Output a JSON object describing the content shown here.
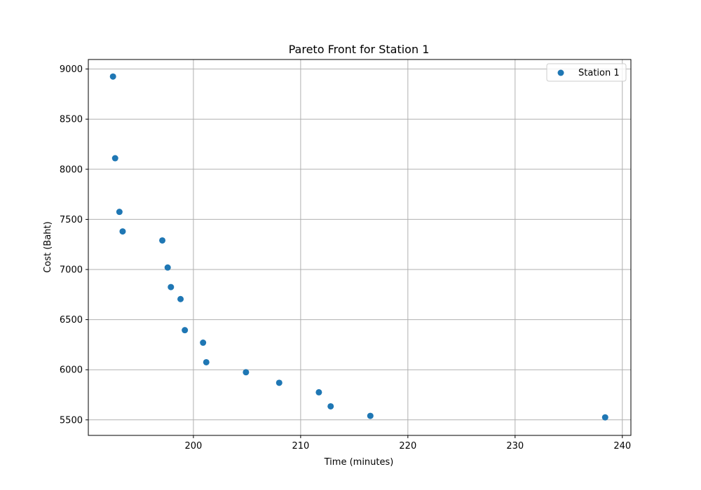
{
  "chart_data": {
    "type": "scatter",
    "title": "Pareto Front for Station 1",
    "xlabel": "Time (minutes)",
    "ylabel": "Cost (Baht)",
    "xlim": [
      190.2,
      240.8
    ],
    "ylim": [
      5345,
      9095
    ],
    "xticks": [
      200,
      210,
      220,
      230,
      240
    ],
    "yticks": [
      5500,
      6000,
      6500,
      7000,
      7500,
      8000,
      8500,
      9000
    ],
    "grid": true,
    "legend_position": "top-right",
    "series": [
      {
        "name": "Station 1",
        "color": "#1f77b4",
        "x": [
          192.5,
          192.7,
          193.1,
          193.4,
          197.1,
          197.6,
          197.9,
          198.8,
          199.2,
          200.9,
          201.2,
          204.9,
          208.0,
          211.7,
          212.8,
          216.5,
          238.4
        ],
        "y": [
          8925,
          8110,
          7575,
          7380,
          7290,
          7020,
          6825,
          6705,
          6395,
          6270,
          6075,
          5975,
          5870,
          5775,
          5635,
          5540,
          5525
        ]
      }
    ]
  }
}
